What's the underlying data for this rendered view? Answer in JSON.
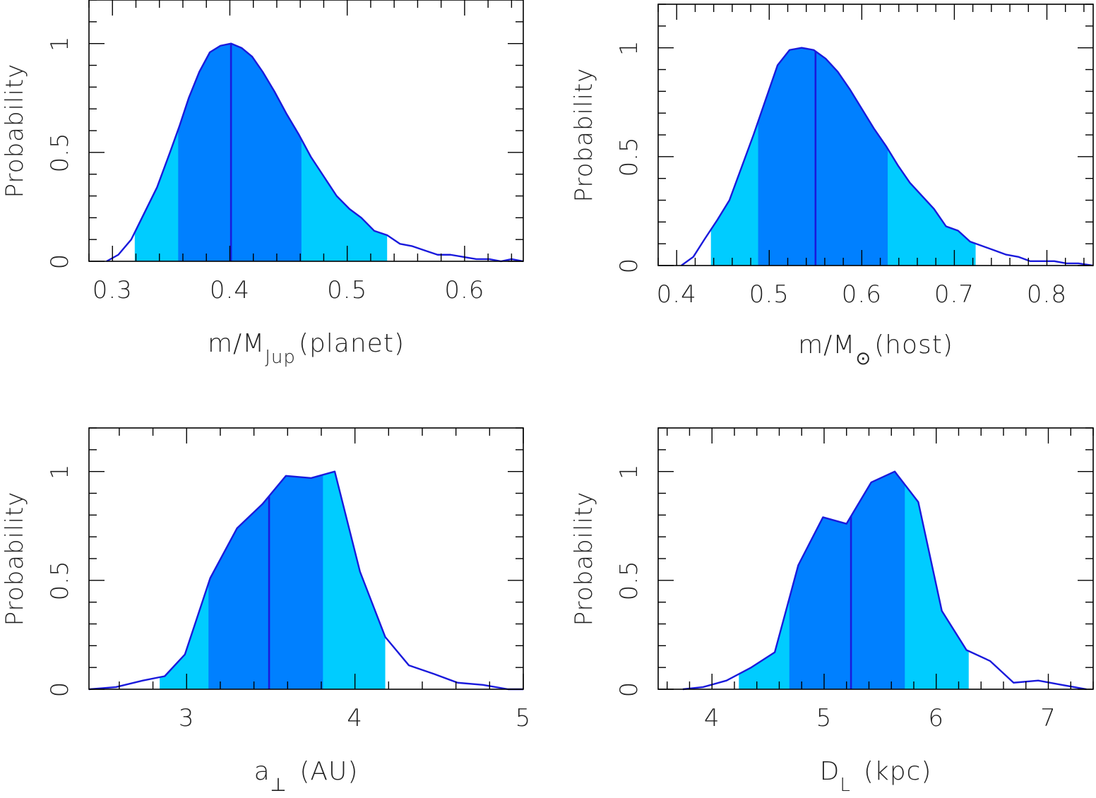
{
  "colors": {
    "line": "#1a1adc",
    "median": "#1a1adc",
    "one_sigma": "#0080ff",
    "two_sigma": "#00ccff",
    "axis": "#000000"
  },
  "chart_data": [
    {
      "type": "area",
      "id": "planet-mass",
      "title": "",
      "xlabel_parts": [
        "m/M",
        "Jup",
        "(planet)"
      ],
      "ylabel": "Probability",
      "xlim": [
        0.28,
        0.65
      ],
      "ylim": [
        0,
        1.2
      ],
      "xticks": [
        0.3,
        0.4,
        0.5,
        0.6
      ],
      "xtick_labels": [
        "0.3",
        "0.4",
        "0.5",
        "0.6"
      ],
      "yticks": [
        0,
        0.5,
        1
      ],
      "ytick_labels": [
        "0",
        "0.5",
        "1"
      ],
      "xminor": 0.02,
      "yminor": 0.1,
      "median": 0.401,
      "one_sigma": [
        0.356,
        0.461
      ],
      "two_sigma": [
        0.319,
        0.534
      ],
      "x": [
        0.295,
        0.305,
        0.316,
        0.327,
        0.338,
        0.349,
        0.357,
        0.365,
        0.374,
        0.383,
        0.392,
        0.401,
        0.41,
        0.419,
        0.428,
        0.438,
        0.448,
        0.459,
        0.469,
        0.48,
        0.491,
        0.502,
        0.512,
        0.523,
        0.534,
        0.545,
        0.555,
        0.566,
        0.577,
        0.588,
        0.599,
        0.61,
        0.621,
        0.631,
        0.64,
        0.65
      ],
      "y": [
        0.0,
        0.03,
        0.1,
        0.22,
        0.34,
        0.5,
        0.62,
        0.75,
        0.87,
        0.96,
        0.99,
        1.0,
        0.98,
        0.94,
        0.87,
        0.78,
        0.68,
        0.58,
        0.48,
        0.39,
        0.3,
        0.24,
        0.2,
        0.14,
        0.12,
        0.08,
        0.07,
        0.05,
        0.03,
        0.03,
        0.02,
        0.01,
        0.01,
        0.0,
        0.01,
        0.0
      ]
    },
    {
      "type": "area",
      "id": "host-mass",
      "title": "",
      "xlabel_parts": [
        "m/M",
        "⊙",
        "(host)"
      ],
      "ylabel": "Probability",
      "xlim": [
        0.38,
        0.85
      ],
      "ylim": [
        0,
        1.2
      ],
      "xticks": [
        0.4,
        0.5,
        0.6,
        0.7,
        0.8
      ],
      "xtick_labels": [
        "0.4",
        "0.5",
        "0.6",
        "0.7",
        "0.8"
      ],
      "yticks": [
        0,
        0.5,
        1
      ],
      "ytick_labels": [
        "0",
        "0.5",
        "1"
      ],
      "xminor": 0.02,
      "yminor": 0.1,
      "median": 0.55,
      "one_sigma": [
        0.488,
        0.628
      ],
      "two_sigma": [
        0.437,
        0.723
      ],
      "x": [
        0.405,
        0.418,
        0.43,
        0.444,
        0.457,
        0.47,
        0.483,
        0.496,
        0.509,
        0.522,
        0.535,
        0.548,
        0.561,
        0.574,
        0.587,
        0.6,
        0.613,
        0.626,
        0.639,
        0.652,
        0.665,
        0.678,
        0.691,
        0.704,
        0.717,
        0.73,
        0.743,
        0.756,
        0.769,
        0.782,
        0.795,
        0.808,
        0.821,
        0.834,
        0.85
      ],
      "y": [
        0.0,
        0.04,
        0.12,
        0.21,
        0.3,
        0.45,
        0.6,
        0.76,
        0.92,
        0.99,
        1.0,
        0.99,
        0.95,
        0.89,
        0.81,
        0.72,
        0.63,
        0.55,
        0.46,
        0.38,
        0.32,
        0.26,
        0.18,
        0.16,
        0.11,
        0.09,
        0.07,
        0.05,
        0.04,
        0.02,
        0.02,
        0.02,
        0.01,
        0.01,
        0.0
      ]
    },
    {
      "type": "area",
      "id": "separation",
      "title": "",
      "xlabel_parts": [
        "a",
        "⊥",
        "(AU)"
      ],
      "ylabel": "Probability",
      "xlim": [
        2.42,
        5.0
      ],
      "ylim": [
        0,
        1.2
      ],
      "xticks": [
        3,
        4,
        5
      ],
      "xtick_labels": [
        "3",
        "4",
        "5"
      ],
      "yticks": [
        0,
        0.5,
        1
      ],
      "ytick_labels": [
        "0",
        "0.5",
        "1"
      ],
      "xminor": 0.2,
      "yminor": 0.1,
      "median": 3.49,
      "one_sigma": [
        3.13,
        3.81
      ],
      "two_sigma": [
        2.84,
        4.18
      ],
      "x": [
        2.42,
        2.58,
        2.74,
        2.87,
        2.99,
        3.14,
        3.3,
        3.45,
        3.59,
        3.74,
        3.88,
        4.03,
        4.18,
        4.32,
        4.47,
        4.61,
        4.76,
        4.91,
        5.0
      ],
      "y": [
        0.0,
        0.01,
        0.04,
        0.06,
        0.16,
        0.51,
        0.74,
        0.85,
        0.98,
        0.97,
        1.0,
        0.54,
        0.24,
        0.11,
        0.07,
        0.03,
        0.02,
        0.0,
        0.0
      ]
    },
    {
      "type": "area",
      "id": "distance",
      "title": "",
      "xlabel_parts": [
        "D",
        "L",
        "(kpc)"
      ],
      "ylabel": "Probability",
      "xlim": [
        3.52,
        7.4
      ],
      "ylim": [
        0,
        1.2
      ],
      "xticks": [
        4,
        5,
        6,
        7
      ],
      "xtick_labels": [
        "4",
        "5",
        "6",
        "7"
      ],
      "yticks": [
        0,
        0.5,
        1
      ],
      "ytick_labels": [
        "0",
        "0.5",
        "1"
      ],
      "xminor": 0.2,
      "yminor": 0.1,
      "median": 5.24,
      "one_sigma": [
        4.69,
        5.72
      ],
      "two_sigma": [
        4.24,
        6.29
      ],
      "x": [
        3.74,
        3.92,
        4.13,
        4.35,
        4.56,
        4.77,
        4.99,
        5.2,
        5.42,
        5.63,
        5.84,
        6.05,
        6.27,
        6.48,
        6.69,
        6.91,
        7.12,
        7.34
      ],
      "y": [
        0.0,
        0.01,
        0.04,
        0.1,
        0.17,
        0.57,
        0.79,
        0.76,
        0.95,
        1.0,
        0.86,
        0.36,
        0.18,
        0.13,
        0.03,
        0.04,
        0.02,
        0.0
      ]
    }
  ]
}
